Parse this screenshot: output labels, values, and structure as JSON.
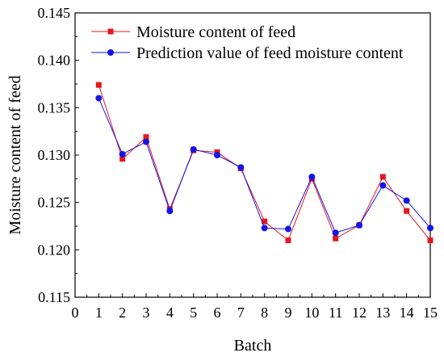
{
  "chart_data": {
    "type": "line",
    "title": "",
    "xlabel": "Batch",
    "ylabel": "Moisture content of feed",
    "xlim": [
      0,
      15
    ],
    "ylim": [
      0.115,
      0.145
    ],
    "xticks": [
      "0",
      "1",
      "2",
      "3",
      "4",
      "5",
      "6",
      "7",
      "8",
      "9",
      "10",
      "11",
      "12",
      "13",
      "14",
      "15"
    ],
    "yticks": [
      "0.115",
      "0.120",
      "0.125",
      "0.130",
      "0.135",
      "0.140",
      "0.145"
    ],
    "grid": false,
    "legend_position": "top-left",
    "x": [
      1,
      2,
      3,
      4,
      5,
      6,
      7,
      8,
      9,
      10,
      11,
      12,
      13,
      14,
      15
    ],
    "series": [
      {
        "name": "Moisture content of feed",
        "color": "#e8151b",
        "marker": "square",
        "values": [
          0.1374,
          0.1296,
          0.1319,
          0.1243,
          0.1305,
          0.1303,
          0.1286,
          0.123,
          0.121,
          0.1275,
          0.1212,
          0.1226,
          0.1277,
          0.1241,
          0.121
        ]
      },
      {
        "name": "Prediction value of feed moisture content",
        "color": "#1414e6",
        "marker": "circle",
        "values": [
          0.136,
          0.1301,
          0.1314,
          0.1241,
          0.1306,
          0.13,
          0.1287,
          0.1223,
          0.1222,
          0.1277,
          0.1218,
          0.1226,
          0.1268,
          0.1252,
          0.1223
        ]
      }
    ]
  }
}
